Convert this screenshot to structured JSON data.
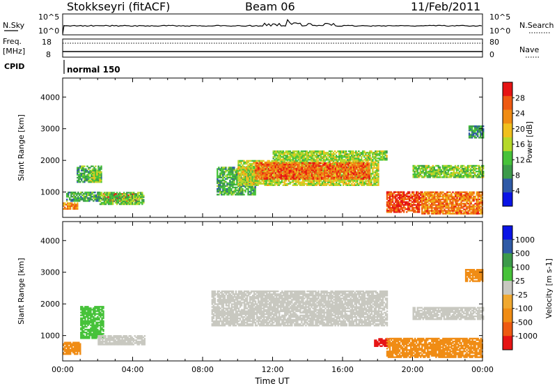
{
  "header": {
    "station": "Stokkseyri (fitACF)",
    "beam": "Beam 06",
    "date": "11/Feb/2011"
  },
  "top_panel": {
    "left_label": "N.Sky",
    "right_label": "N.Search",
    "left_ticks": [
      "10^5",
      "10^0"
    ],
    "right_ticks": [
      "10^5",
      "10^0"
    ]
  },
  "freq_panel": {
    "left_label_1": "Freq.",
    "left_label_2": "[MHz]",
    "right_label": "Nave",
    "left_ticks": [
      "18",
      "8"
    ],
    "right_ticks": [
      "80",
      "0"
    ]
  },
  "cpid_panel": {
    "label": "CPID",
    "program": "normal 150"
  },
  "colors": {
    "power_scale": [
      "#0a14e6",
      "#2f5aa6",
      "#3c9a4a",
      "#47c23a",
      "#b5d82a",
      "#f0c01e",
      "#f08c14",
      "#ee5a12",
      "#e61414"
    ],
    "velocity_scale": [
      "#e61414",
      "#ee5a12",
      "#f08c14",
      "#f0a830",
      "#c8c8c0",
      "#c8c8c0",
      "#47c23a",
      "#3c9a4a",
      "#2f5aa6",
      "#0a14e6"
    ],
    "ground_scatter": "#c8c8c0"
  },
  "chart_data": [
    {
      "type": "heatmap",
      "name": "power",
      "xlabel": "",
      "ylabel": "Slant Range [km]",
      "xlim": [
        "00:00",
        "24:00"
      ],
      "ylim": [
        200,
        4600
      ],
      "y_ticks": [
        1000,
        2000,
        3000,
        4000
      ],
      "colorbar": {
        "label": "Power [dB]",
        "ticks": [
          4,
          8,
          12,
          16,
          20,
          24,
          28
        ],
        "range": [
          0,
          30
        ]
      },
      "regions": [
        {
          "t": [
            0.0,
            0.8
          ],
          "r": [
            450,
            650
          ],
          "v": 22
        },
        {
          "t": [
            0.2,
            2.1
          ],
          "r": [
            700,
            1000
          ],
          "v": 10
        },
        {
          "t": [
            0.8,
            2.2
          ],
          "r": [
            1300,
            1800
          ],
          "v": 10
        },
        {
          "t": [
            1.6,
            2.1
          ],
          "r": [
            1300,
            1700
          ],
          "v": 14
        },
        {
          "t": [
            2.3,
            4.3
          ],
          "r": [
            700,
            950
          ],
          "v": 27
        },
        {
          "t": [
            2.1,
            4.6
          ],
          "r": [
            600,
            1000
          ],
          "v": 12
        },
        {
          "t": [
            8.8,
            11.0
          ],
          "r": [
            900,
            1800
          ],
          "v": 10
        },
        {
          "t": [
            10.0,
            18.0
          ],
          "r": [
            1200,
            2000
          ],
          "v": 16
        },
        {
          "t": [
            11.0,
            17.5
          ],
          "r": [
            1400,
            1900
          ],
          "v": 24
        },
        {
          "t": [
            12.0,
            18.5
          ],
          "r": [
            2000,
            2300
          ],
          "v": 14
        },
        {
          "t": [
            18.5,
            20.5
          ],
          "r": [
            350,
            1000
          ],
          "v": 26
        },
        {
          "t": [
            20.5,
            24.0
          ],
          "r": [
            300,
            1000
          ],
          "v": 23
        },
        {
          "t": [
            20.0,
            24.0
          ],
          "r": [
            1450,
            1850
          ],
          "v": 13
        },
        {
          "t": [
            23.2,
            24.0
          ],
          "r": [
            2700,
            3100
          ],
          "v": 8
        }
      ]
    },
    {
      "type": "heatmap",
      "name": "velocity",
      "xlabel": "Time UT",
      "ylabel": "Slant Range [km]",
      "xlim": [
        "00:00",
        "24:00"
      ],
      "ylim": [
        200,
        4600
      ],
      "x_ticks": [
        "00:00",
        "04:00",
        "08:00",
        "12:00",
        "16:00",
        "20:00",
        "00:00"
      ],
      "y_ticks": [
        1000,
        2000,
        3000,
        4000
      ],
      "colorbar": {
        "label": "Velocity [m s-1]",
        "ticks": [
          -1000,
          -500,
          -100,
          -25,
          25,
          100,
          500,
          1000
        ]
      },
      "regions": [
        {
          "t": [
            0.0,
            1.0
          ],
          "r": [
            400,
            800
          ],
          "v": -100
        },
        {
          "t": [
            1.0,
            2.3
          ],
          "r": [
            900,
            1900
          ],
          "v": 200
        },
        {
          "t": [
            2.0,
            4.7
          ],
          "r": [
            700,
            1000
          ],
          "v": 0
        },
        {
          "t": [
            8.5,
            18.5
          ],
          "r": [
            1300,
            2400
          ],
          "v": 0
        },
        {
          "t": [
            17.8,
            18.6
          ],
          "r": [
            650,
            900
          ],
          "v": -900
        },
        {
          "t": [
            18.5,
            24.0
          ],
          "r": [
            300,
            900
          ],
          "v": -150
        },
        {
          "t": [
            20.0,
            24.0
          ],
          "r": [
            1500,
            1900
          ],
          "v": 0
        },
        {
          "t": [
            23.0,
            24.0
          ],
          "r": [
            2700,
            3100
          ],
          "v": -150
        }
      ]
    }
  ]
}
